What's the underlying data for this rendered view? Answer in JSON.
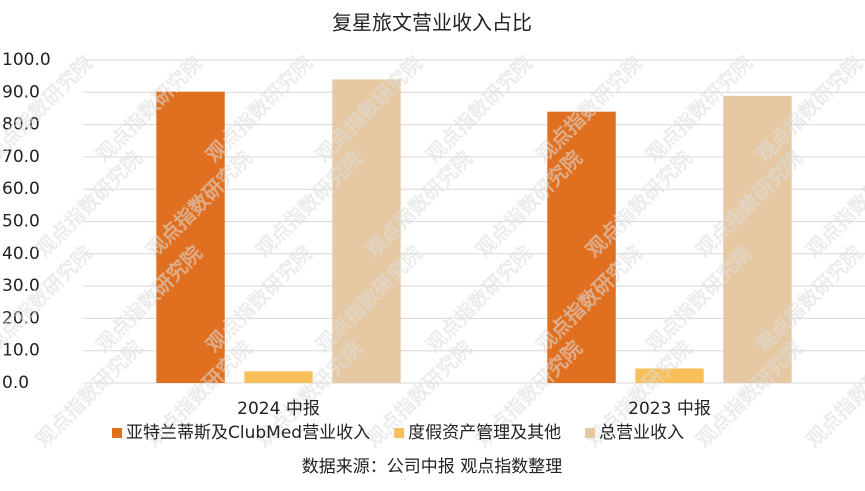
{
  "chart_data": {
    "type": "bar",
    "title": "复星旅文营业收入占比",
    "categories": [
      "2024 中报",
      "2023 中报"
    ],
    "series": [
      {
        "name": "亚特兰蒂斯及ClubMed营业收入",
        "color": "#e07020",
        "values": [
          90.2,
          84.0
        ]
      },
      {
        "name": "度假资产管理及其他",
        "color": "#f9bf5a",
        "values": [
          3.6,
          4.5
        ]
      },
      {
        "name": "总营业收入",
        "color": "#e6c9a3",
        "values": [
          94.0,
          88.9
        ]
      }
    ],
    "ylim": [
      0,
      100
    ],
    "yticks": [
      {
        "value": 0,
        "label": "0.0"
      },
      {
        "value": 10,
        "label": "10.0"
      },
      {
        "value": 20,
        "label": "20.0"
      },
      {
        "value": 30,
        "label": "30.0"
      },
      {
        "value": 40,
        "label": "40.0"
      },
      {
        "value": 50,
        "label": "50.0"
      },
      {
        "value": 60,
        "label": "60.0"
      },
      {
        "value": 70,
        "label": "70.0"
      },
      {
        "value": 80,
        "label": "80.0"
      },
      {
        "value": 90,
        "label": "90.0"
      },
      {
        "value": 100,
        "label": "100.0"
      }
    ],
    "grid": true,
    "legend": "bottom",
    "source": "数据来源：公司中报  观点指数整理",
    "watermark": "观点指数研究院"
  }
}
